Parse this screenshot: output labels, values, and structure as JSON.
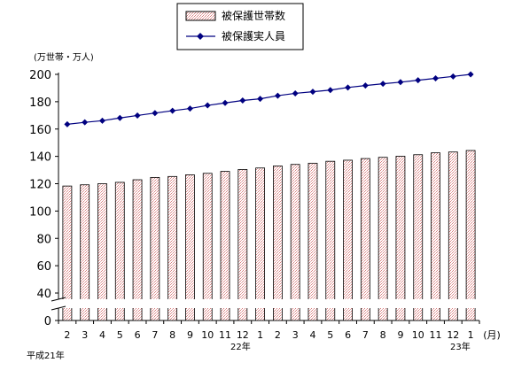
{
  "chart_data": {
    "type": "bar+line",
    "unit_label": "(万世帯・万人)",
    "x_tick_labels": [
      "2",
      "3",
      "4",
      "5",
      "6",
      "7",
      "8",
      "9",
      "10",
      "11",
      "12",
      "1",
      "2",
      "3",
      "4",
      "5",
      "6",
      "7",
      "8",
      "9",
      "10",
      "11",
      "12",
      "1",
      "(月)"
    ],
    "year_labels": [
      "平成21年",
      "22年",
      "23年"
    ],
    "y_ticks": [
      0,
      40,
      60,
      80,
      100,
      120,
      140,
      160,
      180,
      200
    ],
    "ylim": [
      0,
      200
    ],
    "axis_break": "between 0 and 40",
    "legend_position": "top-center",
    "legend": {
      "bar_series_name": "被保護世帯数",
      "line_series_name": "被保護実人員"
    },
    "series": [
      {
        "name": "被保護世帯数",
        "type": "bar",
        "color": "#f2c4c4",
        "values": [
          118.3,
          119.2,
          120.0,
          121.0,
          122.9,
          124.6,
          125.3,
          126.5,
          127.6,
          129.0,
          130.4,
          131.5,
          133.0,
          134.1,
          135.0,
          136.4,
          137.2,
          138.4,
          139.3,
          140.1,
          141.2,
          142.6,
          143.2,
          144.3
        ]
      },
      {
        "name": "被保護実人員",
        "type": "line",
        "color": "#000080",
        "values": [
          163.5,
          164.9,
          166.1,
          168.1,
          169.9,
          171.7,
          173.4,
          175.0,
          177.3,
          179.1,
          180.9,
          182.1,
          184.4,
          186.1,
          187.3,
          188.5,
          190.4,
          191.8,
          193.1,
          194.3,
          195.7,
          197.1,
          198.5,
          200.0
        ]
      }
    ]
  }
}
